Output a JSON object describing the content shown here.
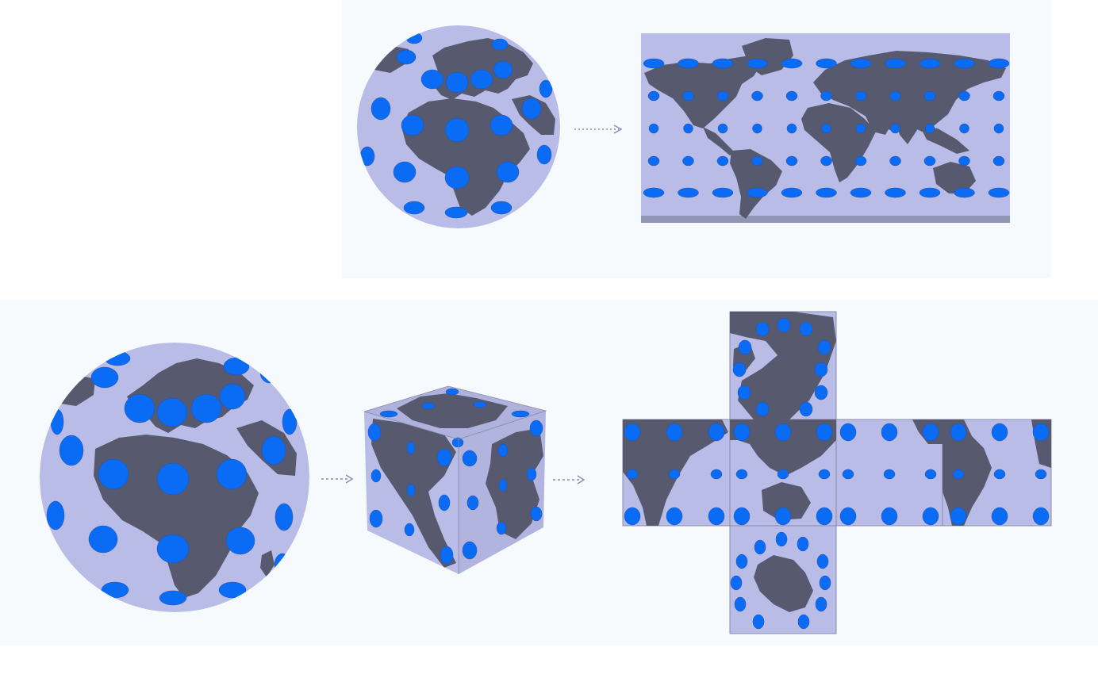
{
  "colors": {
    "page_background": "#ffffff",
    "panel_background": "#f7fafc",
    "ocean": "#b8bce6",
    "land": "#575a6e",
    "tissot_indicatrix": "#0a6cf5",
    "outline": "#8a8ca8",
    "arrow": "#8c8ab0"
  },
  "diagram": {
    "top_row": {
      "stages": [
        "globe-with-indicatrices",
        "equirectangular-world-map"
      ],
      "connector": "dotted-arrow",
      "map_indicatrix_rows": 5,
      "map_indicatrix_columns": 11
    },
    "bottom_row": {
      "stages": [
        "globe-with-indicatrices",
        "cube-projection",
        "unfolded-cube-net"
      ],
      "connectors": [
        "dotted-arrow",
        "dotted-arrow"
      ],
      "net_faces": [
        "north-polar-face",
        "africa-face",
        "asia-face",
        "pacific-face",
        "americas-face",
        "antarctic-face"
      ]
    }
  }
}
